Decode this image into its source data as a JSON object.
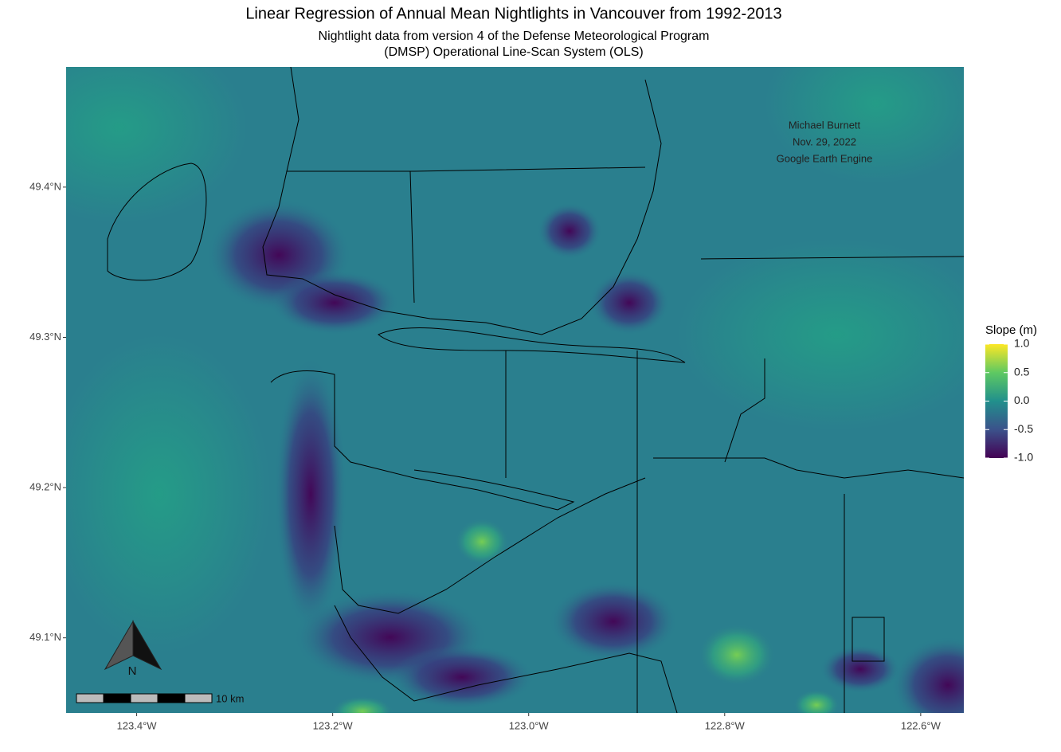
{
  "map": {
    "title": "Linear Regression of Annual Mean Nightlights in Vancouver from 1992-2013",
    "subtitle": [
      "Nightlight data from version 4 of the Defense Meteorological Program",
      "(DMSP) Operational Line-Scan System (OLS)"
    ],
    "xlim": [
      -123.472,
      -122.556
    ],
    "ylim": [
      49.05,
      49.48
    ],
    "xticks": [
      {
        "value": -123.4,
        "label": "123.4°W"
      },
      {
        "value": -123.2,
        "label": "123.2°W"
      },
      {
        "value": -123.0,
        "label": "123.0°W"
      },
      {
        "value": -122.8,
        "label": "122.8°W"
      },
      {
        "value": -122.6,
        "label": "122.6°W"
      }
    ],
    "yticks": [
      {
        "value": 49.1,
        "label": "49.1°N"
      },
      {
        "value": 49.2,
        "label": "49.2°N"
      },
      {
        "value": 49.3,
        "label": "49.3°N"
      },
      {
        "value": 49.4,
        "label": "49.4°N"
      }
    ],
    "annotation": [
      "Michael Burnett",
      "Nov. 29, 2022",
      "Google Earth Engine"
    ],
    "legend": {
      "title": "Slope (m)",
      "lim": [
        -1,
        1
      ],
      "ticks": [
        {
          "value": 1,
          "label": "1.0"
        },
        {
          "value": 0.5,
          "label": "0.5"
        },
        {
          "value": 0,
          "label": "0.0"
        },
        {
          "value": -0.5,
          "label": "-0.5"
        },
        {
          "value": -1,
          "label": "-1.0"
        }
      ]
    },
    "scale_bar_label": "10 km",
    "north_label": "N"
  }
}
